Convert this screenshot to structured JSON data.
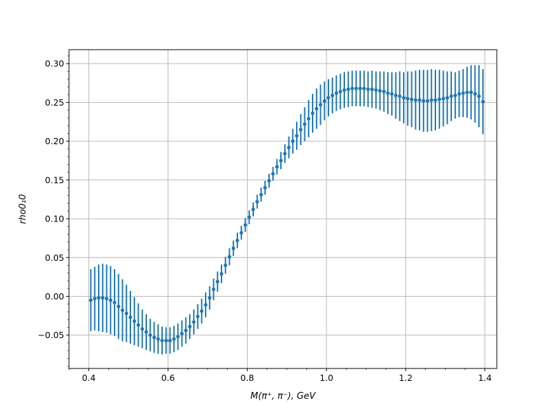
{
  "chart_data": {
    "type": "scatter",
    "title": "",
    "xlabel": "M(π⁺, π⁻), GeV",
    "ylabel": "rho0₁0",
    "xlim": [
      0.35,
      1.43
    ],
    "ylim": [
      -0.093,
      0.318
    ],
    "xticks": [
      0.4,
      0.6,
      0.8,
      1.0,
      1.2,
      1.4
    ],
    "xtick_labels": [
      "0.4",
      "0.6",
      "0.8",
      "1.0",
      "1.2",
      "1.4"
    ],
    "yticks": [
      -0.05,
      0.0,
      0.05,
      0.1,
      0.15,
      0.2,
      0.25,
      0.3
    ],
    "ytick_labels": [
      "−0.05",
      "0.00",
      "0.05",
      "0.10",
      "0.15",
      "0.20",
      "0.25",
      "0.30"
    ],
    "grid": true,
    "minor_ticks": true,
    "legend": "none",
    "series": [
      {
        "color": "#1f77b4",
        "marker": "circle",
        "errorbars": true,
        "x": [
          0.405,
          0.415,
          0.425,
          0.435,
          0.445,
          0.455,
          0.465,
          0.475,
          0.485,
          0.495,
          0.505,
          0.515,
          0.525,
          0.535,
          0.545,
          0.555,
          0.565,
          0.575,
          0.585,
          0.595,
          0.605,
          0.615,
          0.625,
          0.635,
          0.645,
          0.655,
          0.665,
          0.675,
          0.685,
          0.695,
          0.705,
          0.715,
          0.725,
          0.735,
          0.745,
          0.755,
          0.765,
          0.775,
          0.785,
          0.795,
          0.805,
          0.815,
          0.825,
          0.835,
          0.845,
          0.855,
          0.865,
          0.875,
          0.885,
          0.895,
          0.905,
          0.915,
          0.925,
          0.935,
          0.945,
          0.955,
          0.965,
          0.975,
          0.985,
          0.995,
          1.005,
          1.015,
          1.025,
          1.035,
          1.045,
          1.055,
          1.065,
          1.075,
          1.085,
          1.095,
          1.105,
          1.115,
          1.125,
          1.135,
          1.145,
          1.155,
          1.165,
          1.175,
          1.185,
          1.195,
          1.205,
          1.215,
          1.225,
          1.235,
          1.245,
          1.255,
          1.265,
          1.275,
          1.285,
          1.295,
          1.305,
          1.315,
          1.325,
          1.335,
          1.345,
          1.355,
          1.365,
          1.375,
          1.385,
          1.395
        ],
        "y": [
          -0.005,
          -0.003,
          -0.002,
          -0.002,
          -0.003,
          -0.005,
          -0.008,
          -0.013,
          -0.018,
          -0.022,
          -0.027,
          -0.032,
          -0.037,
          -0.042,
          -0.046,
          -0.05,
          -0.053,
          -0.055,
          -0.057,
          -0.057,
          -0.057,
          -0.055,
          -0.052,
          -0.048,
          -0.044,
          -0.039,
          -0.033,
          -0.026,
          -0.019,
          -0.011,
          -0.002,
          0.009,
          0.019,
          0.029,
          0.04,
          0.051,
          0.062,
          0.072,
          0.082,
          0.092,
          0.102,
          0.112,
          0.122,
          0.131,
          0.14,
          0.149,
          0.158,
          0.167,
          0.175,
          0.184,
          0.192,
          0.2,
          0.207,
          0.215,
          0.222,
          0.229,
          0.236,
          0.242,
          0.247,
          0.252,
          0.256,
          0.259,
          0.262,
          0.264,
          0.266,
          0.267,
          0.268,
          0.268,
          0.268,
          0.268,
          0.267,
          0.267,
          0.266,
          0.265,
          0.264,
          0.262,
          0.261,
          0.259,
          0.258,
          0.256,
          0.255,
          0.254,
          0.253,
          0.253,
          0.252,
          0.252,
          0.253,
          0.253,
          0.254,
          0.255,
          0.256,
          0.258,
          0.259,
          0.261,
          0.262,
          0.263,
          0.263,
          0.261,
          0.258,
          0.251
        ],
        "yerr": [
          0.04,
          0.041,
          0.043,
          0.044,
          0.044,
          0.044,
          0.043,
          0.042,
          0.04,
          0.037,
          0.034,
          0.031,
          0.028,
          0.025,
          0.023,
          0.021,
          0.02,
          0.019,
          0.018,
          0.017,
          0.017,
          0.017,
          0.017,
          0.017,
          0.017,
          0.016,
          0.016,
          0.016,
          0.016,
          0.016,
          0.015,
          0.014,
          0.013,
          0.012,
          0.011,
          0.011,
          0.01,
          0.01,
          0.009,
          0.009,
          0.009,
          0.009,
          0.009,
          0.009,
          0.009,
          0.009,
          0.009,
          0.01,
          0.011,
          0.012,
          0.014,
          0.016,
          0.018,
          0.02,
          0.022,
          0.024,
          0.025,
          0.026,
          0.026,
          0.025,
          0.024,
          0.023,
          0.023,
          0.023,
          0.023,
          0.023,
          0.023,
          0.023,
          0.023,
          0.023,
          0.023,
          0.024,
          0.024,
          0.025,
          0.026,
          0.027,
          0.028,
          0.03,
          0.032,
          0.033,
          0.035,
          0.036,
          0.038,
          0.039,
          0.04,
          0.04,
          0.04,
          0.039,
          0.038,
          0.036,
          0.034,
          0.032,
          0.03,
          0.03,
          0.031,
          0.033,
          0.035,
          0.037,
          0.04,
          0.042
        ]
      }
    ]
  }
}
